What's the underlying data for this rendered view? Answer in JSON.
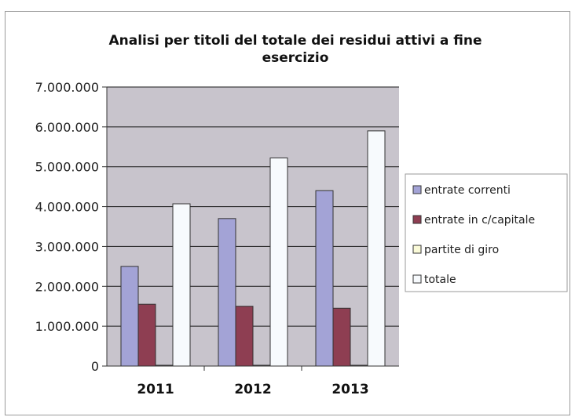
{
  "chart_data": {
    "type": "bar",
    "title": "Analisi per titoli del totale dei residui attivi a fine esercizio",
    "title_lines": [
      "Analisi per titoli del totale dei residui attivi a fine",
      "esercizio"
    ],
    "categories": [
      "2011",
      "2012",
      "2013"
    ],
    "series": [
      {
        "name": "entrate correnti",
        "values": [
          2500000,
          3700000,
          4400000
        ],
        "color": "#a3a3d6"
      },
      {
        "name": "entrate in c/capitale",
        "values": [
          1550000,
          1500000,
          1450000
        ],
        "color": "#8e3e52"
      },
      {
        "name": "partite di giro",
        "values": [
          20000,
          20000,
          20000
        ],
        "color": "#fafad8"
      },
      {
        "name": "totale",
        "values": [
          4070000,
          5220000,
          5900000
        ],
        "color": "#f7fafd"
      }
    ],
    "y_ticks": [
      "0",
      "1.000.000",
      "2.000.000",
      "3.000.000",
      "4.000.000",
      "5.000.000",
      "6.000.000",
      "7.000.000"
    ],
    "ylim": [
      0,
      7000000
    ],
    "xlabel": "",
    "ylabel": "",
    "grid": true,
    "legend_position": "right",
    "plot_background": "#c8c4cc"
  }
}
